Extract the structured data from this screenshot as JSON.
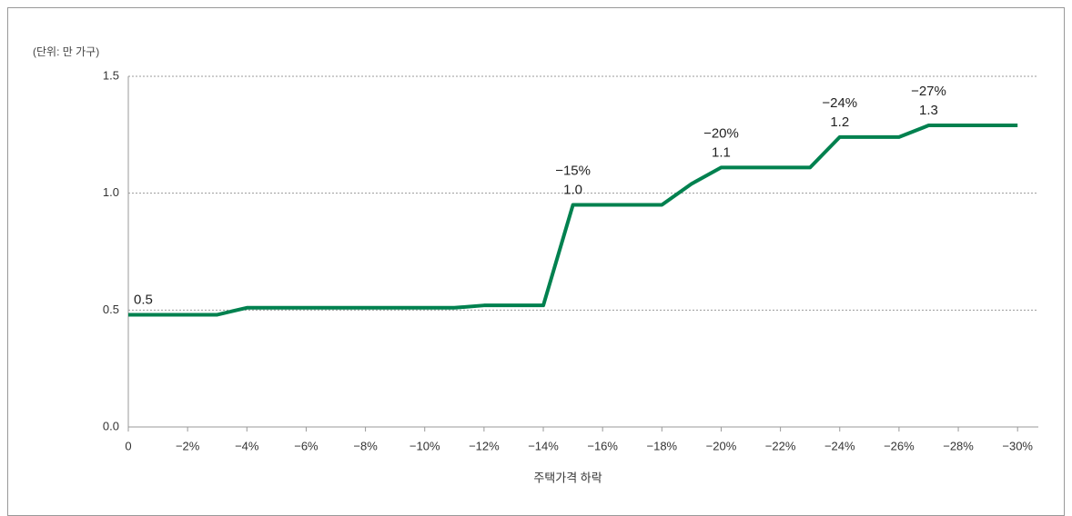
{
  "chart_data": {
    "type": "line",
    "unit_label": "(단위: 만 가구)",
    "x_label": "주택가격 하락",
    "x": [
      0,
      -1,
      -2,
      -3,
      -4,
      -5,
      -6,
      -7,
      -8,
      -9,
      -10,
      -11,
      -12,
      -13,
      -14,
      -15,
      -16,
      -17,
      -18,
      -19,
      -20,
      -21,
      -22,
      -23,
      -24,
      -25,
      -26,
      -27,
      -28,
      -29,
      -30
    ],
    "series": [
      {
        "color": "#00814f",
        "values": [
          0.48,
          0.48,
          0.48,
          0.48,
          0.51,
          0.51,
          0.51,
          0.51,
          0.51,
          0.51,
          0.51,
          0.51,
          0.52,
          0.52,
          0.52,
          0.95,
          0.95,
          0.95,
          0.95,
          1.04,
          1.11,
          1.11,
          1.11,
          1.11,
          1.24,
          1.24,
          1.24,
          1.29,
          1.29,
          1.29,
          1.29
        ],
        "value_labels": [
          "0.5",
          null,
          null,
          null,
          null,
          null,
          null,
          null,
          null,
          null,
          null,
          null,
          null,
          null,
          null,
          "1.0",
          null,
          null,
          null,
          null,
          "1.1",
          null,
          null,
          null,
          "1.2",
          null,
          null,
          "1.3",
          null,
          null,
          null
        ],
        "annotations": [
          null,
          null,
          null,
          null,
          null,
          null,
          null,
          null,
          null,
          null,
          null,
          null,
          null,
          null,
          null,
          "−15%",
          null,
          null,
          null,
          null,
          "−20%",
          null,
          null,
          null,
          "−24%",
          null,
          null,
          "−27%",
          null,
          null,
          null
        ]
      }
    ],
    "xlim": [
      0,
      -30.7
    ],
    "xticks": [
      0,
      {
        "value": -2,
        "label": "−2%"
      },
      {
        "value": -4,
        "label": "−4%"
      },
      {
        "value": -6,
        "label": "−6%"
      },
      {
        "value": -8,
        "label": "−8%"
      },
      {
        "value": -10,
        "label": "−10%"
      },
      {
        "value": -12,
        "label": "−12%"
      },
      {
        "value": -14,
        "label": "−14%"
      },
      {
        "value": -16,
        "label": "−16%"
      },
      {
        "value": -18,
        "label": "−18%"
      },
      {
        "value": -20,
        "label": "−20%"
      },
      {
        "value": -22,
        "label": "−22%"
      },
      {
        "value": -24,
        "label": "−24%"
      },
      {
        "value": -26,
        "label": "−26%"
      },
      {
        "value": -28,
        "label": "−28%"
      },
      {
        "value": -30,
        "label": "−30%"
      }
    ],
    "ylim": [
      0,
      1.5
    ],
    "yticks": [
      {
        "value": 0,
        "label": "0.0"
      },
      0.5,
      {
        "value": 1,
        "label": "1.0"
      },
      1.5
    ],
    "grid": true
  }
}
